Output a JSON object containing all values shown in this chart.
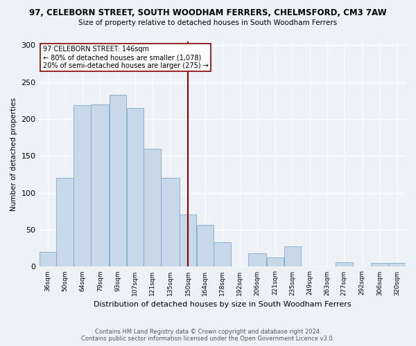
{
  "title": "97, CELEBORN STREET, SOUTH WOODHAM FERRERS, CHELMSFORD, CM3 7AW",
  "subtitle": "Size of property relative to detached houses in South Woodham Ferrers",
  "xlabel": "Distribution of detached houses by size in South Woodham Ferrers",
  "ylabel": "Number of detached properties",
  "bar_color": "#c8d8e8",
  "bar_edge_color": "#7aaac8",
  "annotation_line_color": "#8b0000",
  "annotation_box_color": "#8b0000",
  "annotation_text": "97 CELEBORN STREET: 146sqm",
  "annotation_line1": "← 80% of detached houses are smaller (1,078)",
  "annotation_line2": "20% of semi-detached houses are larger (275) →",
  "vline_x": 150,
  "categories": [
    "36sqm",
    "50sqm",
    "64sqm",
    "79sqm",
    "93sqm",
    "107sqm",
    "121sqm",
    "135sqm",
    "150sqm",
    "164sqm",
    "178sqm",
    "192sqm",
    "206sqm",
    "221sqm",
    "235sqm",
    "249sqm",
    "263sqm",
    "277sqm",
    "292sqm",
    "306sqm",
    "320sqm"
  ],
  "values": [
    20,
    120,
    219,
    220,
    233,
    215,
    160,
    120,
    71,
    57,
    33,
    0,
    18,
    13,
    28,
    0,
    0,
    6,
    0,
    5,
    5
  ],
  "bin_edges": [
    29,
    43,
    57,
    71,
    86,
    100,
    114,
    128,
    143,
    157,
    171,
    185,
    199,
    214,
    228,
    242,
    256,
    270,
    284,
    299,
    313,
    327
  ],
  "ylim": [
    0,
    305
  ],
  "yticks": [
    0,
    50,
    100,
    150,
    200,
    250,
    300
  ],
  "footer_line1": "Contains HM Land Registry data © Crown copyright and database right 2024.",
  "footer_line2": "Contains public sector information licensed under the Open Government Licence v3.0.",
  "background_color": "#eef2f7",
  "plot_bg_color": "#eef2f7"
}
